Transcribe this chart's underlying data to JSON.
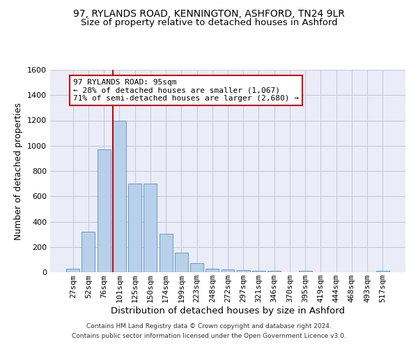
{
  "title": "97, RYLANDS ROAD, KENNINGTON, ASHFORD, TN24 9LR",
  "subtitle": "Size of property relative to detached houses in Ashford",
  "xlabel": "Distribution of detached houses by size in Ashford",
  "ylabel": "Number of detached properties",
  "categories": [
    "27sqm",
    "52sqm",
    "76sqm",
    "101sqm",
    "125sqm",
    "150sqm",
    "174sqm",
    "199sqm",
    "223sqm",
    "248sqm",
    "272sqm",
    "297sqm",
    "321sqm",
    "346sqm",
    "370sqm",
    "395sqm",
    "419sqm",
    "444sqm",
    "468sqm",
    "493sqm",
    "517sqm"
  ],
  "values": [
    30,
    320,
    970,
    1200,
    700,
    700,
    305,
    155,
    70,
    30,
    20,
    15,
    10,
    10,
    0,
    10,
    0,
    0,
    0,
    0,
    10
  ],
  "bar_color": "#b8d0ea",
  "bar_edge_color": "#6699cc",
  "vline_color": "#cc0000",
  "vline_x_index": 3,
  "annotation_line1": "97 RYLANDS ROAD: 95sqm",
  "annotation_line2": "← 28% of detached houses are smaller (1,067)",
  "annotation_line3": "71% of semi-detached houses are larger (2,680) →",
  "box_color": "#cc0000",
  "ylim": [
    0,
    1600
  ],
  "yticks": [
    0,
    200,
    400,
    600,
    800,
    1000,
    1200,
    1400,
    1600
  ],
  "grid_color": "#c8c8d8",
  "bg_color": "#eaecf8",
  "footer_line1": "Contains HM Land Registry data © Crown copyright and database right 2024.",
  "footer_line2": "Contains public sector information licensed under the Open Government Licence v3.0.",
  "title_fontsize": 10,
  "subtitle_fontsize": 9.5,
  "ylabel_fontsize": 9,
  "xlabel_fontsize": 9.5,
  "tick_fontsize": 8,
  "footer_fontsize": 6.5,
  "ann_fontsize": 8
}
